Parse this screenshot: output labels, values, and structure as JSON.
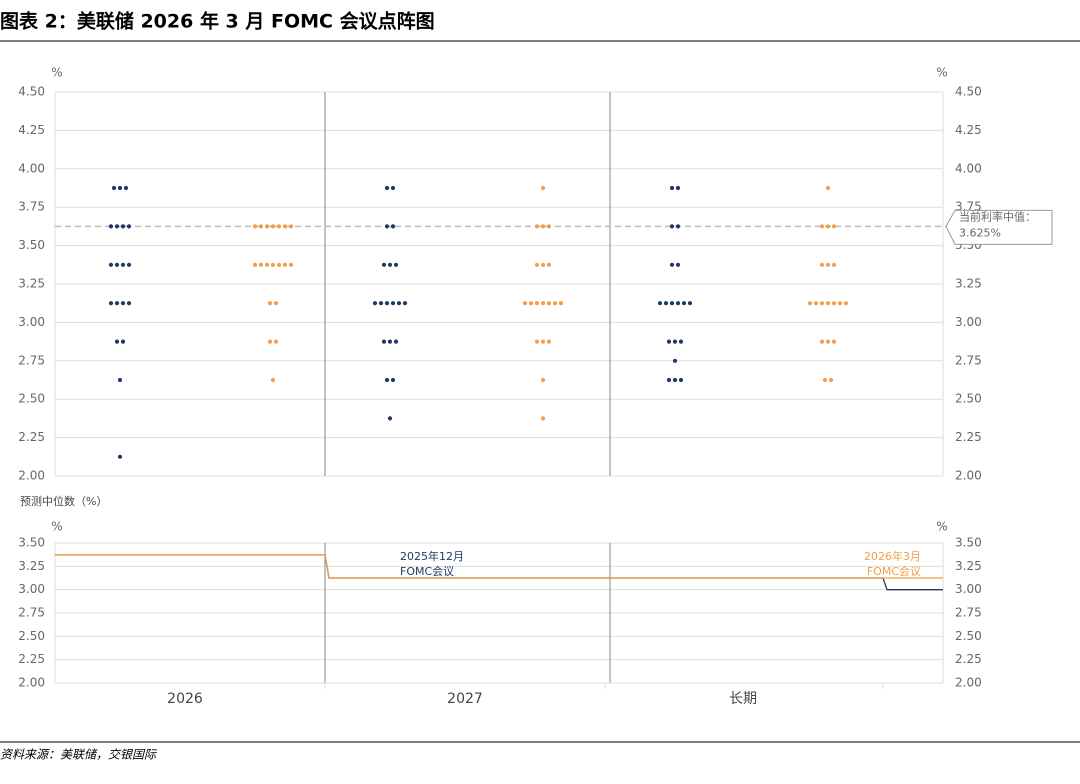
{
  "chart_data": [
    {
      "type": "dot",
      "title": "图表 2：美联储 2026 年 3 月 FOMC 会议点阵图",
      "unit": "%",
      "categories": [
        "2026",
        "2027",
        "长期"
      ],
      "ylim": [
        2,
        4.5
      ],
      "yticks": [
        {
          "value": 2,
          "label": "2.00"
        },
        {
          "value": 2.25,
          "label": "2.25"
        },
        {
          "value": 2.5,
          "label": "2.50"
        },
        {
          "value": 2.75,
          "label": "2.75"
        },
        {
          "value": 3,
          "label": "3.00"
        },
        {
          "value": 3.25,
          "label": "3.25"
        },
        {
          "value": 3.5,
          "label": "3.50"
        },
        {
          "value": 3.75,
          "label": "3.75"
        },
        {
          "value": 4,
          "label": "4.00"
        },
        {
          "value": 4.25,
          "label": "4.25"
        },
        {
          "value": 4.5,
          "label": "4.50"
        }
      ],
      "grid": true,
      "reference_line": {
        "value": 3.625,
        "label": "当前利率中值：3.625%"
      },
      "series": [
        {
          "name": "2025年12月 FOMC会议",
          "color": "#1f3864",
          "dots": [
            [
              [
                3.875,
                3
              ],
              [
                3.625,
                4
              ],
              [
                3.375,
                4
              ],
              [
                3.125,
                4
              ],
              [
                2.875,
                2
              ],
              [
                2.625,
                1
              ],
              [
                2.125,
                1
              ]
            ],
            [
              [
                3.875,
                2
              ],
              [
                3.625,
                2
              ],
              [
                3.375,
                3
              ],
              [
                3.125,
                6
              ],
              [
                2.875,
                3
              ],
              [
                2.625,
                2
              ],
              [
                2.375,
                1
              ]
            ],
            [
              [
                3.875,
                2
              ],
              [
                3.625,
                2
              ],
              [
                3.375,
                2
              ],
              [
                3.125,
                6
              ],
              [
                2.875,
                3
              ],
              [
                2.75,
                1
              ],
              [
                2.625,
                3
              ]
            ]
          ]
        },
        {
          "name": "2026年3月 FOMC会议",
          "color": "#f0a04b",
          "dots": [
            [
              [
                3.625,
                7
              ],
              [
                3.375,
                7
              ],
              [
                3.125,
                2
              ],
              [
                2.875,
                2
              ],
              [
                2.625,
                1
              ]
            ],
            [
              [
                3.875,
                1
              ],
              [
                3.625,
                3
              ],
              [
                3.375,
                3
              ],
              [
                3.125,
                7
              ],
              [
                2.875,
                3
              ],
              [
                2.625,
                1
              ],
              [
                2.375,
                1
              ]
            ],
            [
              [
                3.875,
                1
              ],
              [
                3.625,
                3
              ],
              [
                3.375,
                3
              ],
              [
                3.125,
                7
              ],
              [
                2.875,
                3
              ],
              [
                2.625,
                2
              ]
            ]
          ]
        }
      ]
    },
    {
      "type": "step",
      "title": "预测中位数（%）",
      "unit": "%",
      "categories": [
        "2026",
        "2027",
        "长期"
      ],
      "ylim": [
        2,
        3.5
      ],
      "yticks": [
        {
          "value": 2,
          "label": "2.00"
        },
        {
          "value": 2.25,
          "label": "2.25"
        },
        {
          "value": 2.5,
          "label": "2.50"
        },
        {
          "value": 2.75,
          "label": "2.75"
        },
        {
          "value": 3,
          "label": "3.00"
        },
        {
          "value": 3.25,
          "label": "3.25"
        },
        {
          "value": 3.5,
          "label": "3.50"
        }
      ],
      "grid": true,
      "series": [
        {
          "name": "2025年12月 FOMC会议",
          "color": "#1f3864",
          "values": [
            3.375,
            3.125,
            3.0
          ]
        },
        {
          "name": "2026年3月 FOMC会议",
          "color": "#f0a04b",
          "values": [
            3.375,
            3.125,
            3.125
          ]
        }
      ]
    }
  ],
  "source": "资料来源：美联储，交银国际"
}
